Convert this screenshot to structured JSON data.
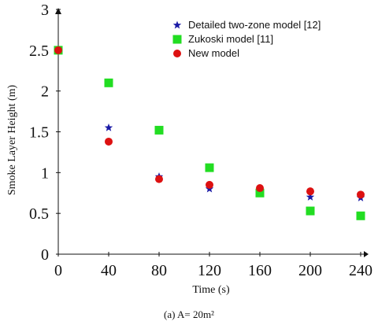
{
  "caption": "(a) A= 20m²",
  "chart_data": {
    "type": "scatter",
    "xlabel": "Time (s)",
    "ylabel": "Smoke Layer Height (m)",
    "xlim": [
      0,
      240
    ],
    "ylim": [
      0,
      3
    ],
    "xticks": [
      "0",
      "40",
      "80",
      "120",
      "160",
      "200",
      "240"
    ],
    "yticks": [
      "0",
      "0.5",
      "1",
      "1.5",
      "2",
      "2.5",
      "3"
    ],
    "grid": false,
    "legend_position": "top-right",
    "series": [
      {
        "name": "Detailed two-zone model [12]",
        "marker": "star",
        "color": "#1a1aa6",
        "x": [
          0,
          40,
          80,
          120,
          160,
          200,
          240
        ],
        "y": [
          2.5,
          1.55,
          0.95,
          0.8,
          0.77,
          0.7,
          0.69
        ]
      },
      {
        "name": "Zukoski model [11]",
        "marker": "square",
        "color": "#22dd22",
        "x": [
          0,
          40,
          80,
          120,
          160,
          200,
          240
        ],
        "y": [
          2.5,
          2.1,
          1.52,
          1.06,
          0.75,
          0.53,
          0.47
        ]
      },
      {
        "name": "New model",
        "marker": "circle",
        "color": "#dd1111",
        "x": [
          0,
          40,
          80,
          120,
          160,
          200,
          240
        ],
        "y": [
          2.5,
          1.38,
          0.92,
          0.85,
          0.81,
          0.77,
          0.73
        ]
      }
    ]
  }
}
